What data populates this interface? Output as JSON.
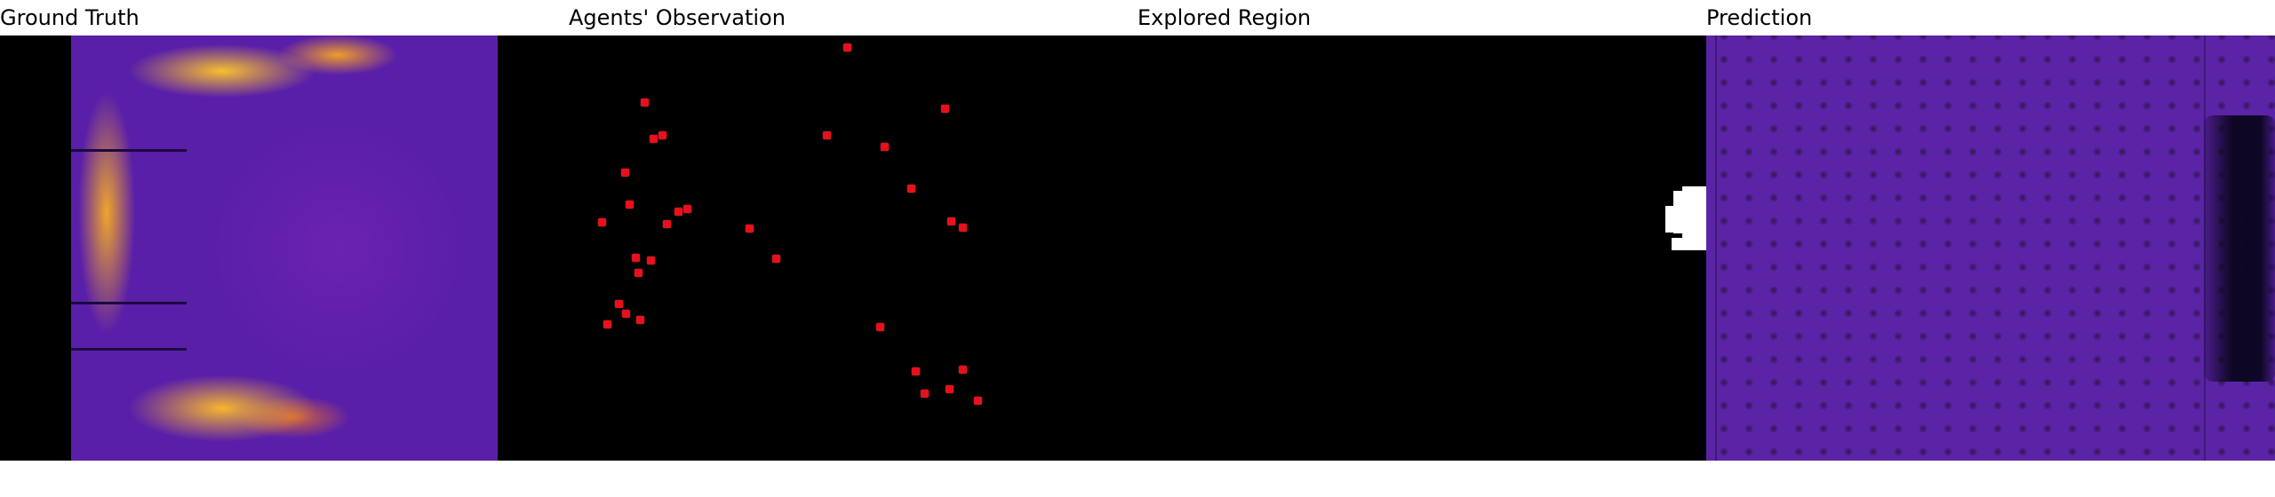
{
  "panels": [
    {
      "title": "Ground Truth"
    },
    {
      "title": "Agents' Observation"
    },
    {
      "title": "Explored Region"
    },
    {
      "title": "Prediction"
    }
  ],
  "colors": {
    "background": "#000000",
    "heat_low": "#5a1fa8",
    "heat_high": "#ffc828",
    "agent_marker": "#e8101a",
    "explored": "#ffffff"
  }
}
